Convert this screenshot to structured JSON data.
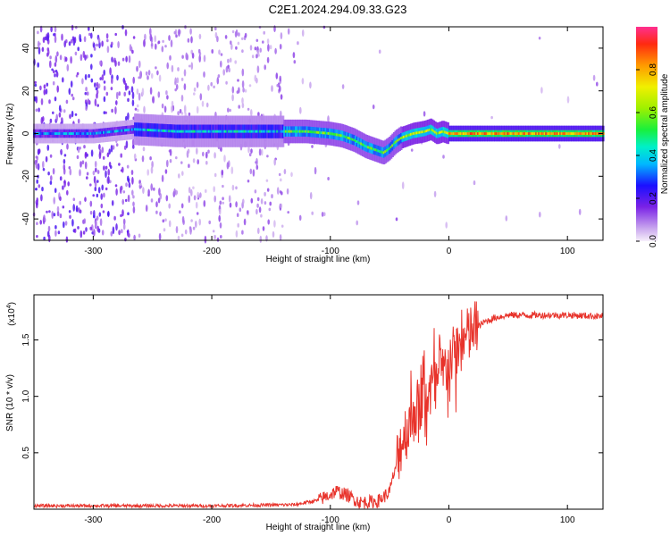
{
  "title": "C2E1.2024.294.09.33.G23",
  "spectrogram": {
    "type": "heatmap",
    "xlabel": "Height of straight line (km)",
    "ylabel": "Frequency (Hz)",
    "xlim": [
      -350,
      130
    ],
    "ylim": [
      -50,
      50
    ],
    "xticks": [
      -300,
      -200,
      -100,
      0,
      100
    ],
    "yticks": [
      -40,
      -20,
      0,
      20,
      40
    ],
    "ridge": {
      "x": [
        -350,
        -300,
        -265,
        -230,
        -200,
        -160,
        -120,
        -100,
        -90,
        -80,
        -70,
        -60,
        -55,
        -50,
        -45,
        -40,
        -30,
        -20,
        -15,
        -10,
        -5,
        0,
        10,
        30,
        60,
        90,
        130
      ],
      "freq": [
        0,
        0,
        2,
        1,
        1,
        1,
        1,
        0,
        -1,
        -3,
        -6,
        -8,
        -9,
        -7,
        -4,
        -2,
        0,
        1,
        2,
        0,
        1,
        0,
        0,
        0,
        0,
        0,
        0
      ]
    },
    "colorbar": {
      "label": "Normalized spectral amplitude",
      "range": [
        0.0,
        1.0
      ],
      "ticks": [
        "0.0",
        "0.2",
        "0.4",
        "0.6",
        "0.8"
      ]
    }
  },
  "snr_plot": {
    "type": "line",
    "xlabel": "Height of straight line (km)",
    "ylabel": "SNR (10 * v/v)",
    "yscale_label": "(x10",
    "yscale_exp": "4",
    "xlim": [
      -350,
      130
    ],
    "ylim": [
      0,
      1.9
    ],
    "xticks": [
      -300,
      -200,
      -100,
      0,
      100
    ],
    "yticks": [
      0.5,
      1.0,
      1.5
    ],
    "ytick_labels": [
      "0.5",
      "1.0",
      "1.5"
    ],
    "line_color": "#e8332b",
    "envelope": {
      "x": [
        -350,
        -200,
        -130,
        -110,
        -100,
        -95,
        -85,
        -75,
        -60,
        -50,
        -45,
        -40,
        -35,
        -30,
        -25,
        -20,
        -15,
        -10,
        -5,
        0,
        5,
        10,
        20,
        30,
        40,
        50,
        60,
        80,
        100,
        130
      ],
      "y": [
        0.03,
        0.03,
        0.04,
        0.08,
        0.13,
        0.16,
        0.12,
        0.06,
        0.07,
        0.15,
        0.38,
        0.6,
        0.72,
        0.85,
        0.92,
        1.0,
        1.08,
        1.12,
        1.2,
        1.3,
        1.38,
        1.45,
        1.58,
        1.66,
        1.7,
        1.72,
        1.72,
        1.72,
        1.72,
        1.71
      ]
    }
  }
}
